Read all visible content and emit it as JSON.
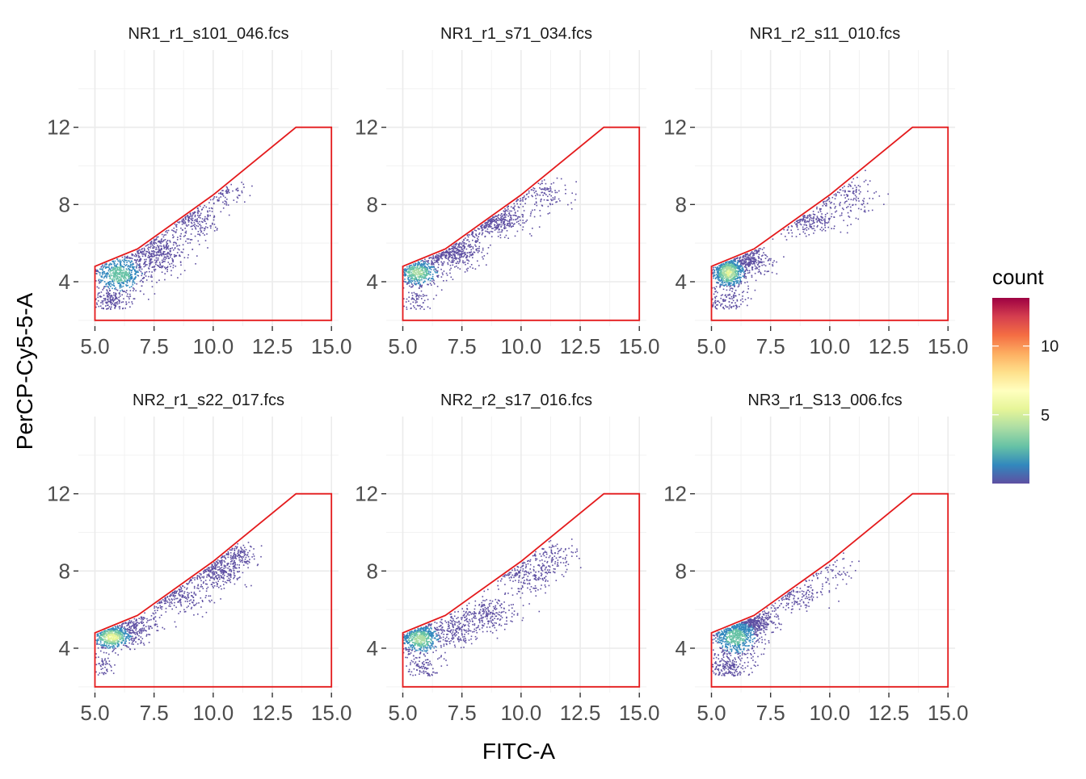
{
  "chart_data": {
    "type": "scatter",
    "subtype": "2d-density (hex/bin count) with polygon gate, faceted 2x3",
    "xlabel": "FITC-A",
    "ylabel": "PerCP-Cy5-5-A",
    "xlim": [
      4.3,
      15.3
    ],
    "ylim": [
      1.7,
      16.0
    ],
    "xticks": [
      5.0,
      7.5,
      10.0,
      12.5,
      15.0
    ],
    "xtick_labels": [
      "5.0",
      "7.5",
      "10.0",
      "12.5",
      "15.0"
    ],
    "yticks": [
      4,
      8,
      12
    ],
    "ytick_labels": [
      "4",
      "8",
      "12"
    ],
    "grid": true,
    "gate": {
      "color": "#e41a1c",
      "polygon": [
        [
          5.0,
          4.8
        ],
        [
          6.8,
          5.7
        ],
        [
          10.0,
          8.5
        ],
        [
          13.5,
          12.0
        ],
        [
          15.0,
          12.0
        ],
        [
          15.0,
          2.0
        ],
        [
          5.0,
          2.0
        ]
      ]
    },
    "legend": {
      "title": "count",
      "placement": "right",
      "ticks": [
        5,
        10
      ],
      "tick_labels": [
        "5",
        "10"
      ],
      "range": [
        0,
        13.5
      ],
      "colors": [
        "#5e4fa2",
        "#3288bd",
        "#66c2a5",
        "#abdda4",
        "#e6f598",
        "#ffffbf",
        "#fee08b",
        "#fdae61",
        "#f46d43",
        "#d53e4f",
        "#9e0142"
      ]
    },
    "facets": [
      {
        "title": "NR1_r1_s101_046.fcs",
        "density": [
          {
            "x": 6.0,
            "y": 4.4,
            "sx": 0.55,
            "sy": 0.5,
            "w": 0.4
          },
          {
            "x": 7.6,
            "y": 5.6,
            "sx": 0.6,
            "sy": 0.55,
            "w": 0.3
          },
          {
            "x": 9.2,
            "y": 7.2,
            "sx": 0.5,
            "sy": 0.5,
            "w": 0.15
          },
          {
            "x": 10.6,
            "y": 8.6,
            "sx": 0.45,
            "sy": 0.4,
            "w": 0.05
          },
          {
            "x": 5.6,
            "y": 3.0,
            "sx": 0.4,
            "sy": 0.3,
            "w": 0.1
          }
        ],
        "max_count": 3
      },
      {
        "title": "NR1_r1_s71_034.fcs",
        "density": [
          {
            "x": 5.6,
            "y": 4.5,
            "sx": 0.45,
            "sy": 0.35,
            "w": 0.35
          },
          {
            "x": 7.2,
            "y": 5.6,
            "sx": 0.55,
            "sy": 0.4,
            "w": 0.25
          },
          {
            "x": 9.0,
            "y": 7.2,
            "sx": 0.6,
            "sy": 0.4,
            "w": 0.25
          },
          {
            "x": 10.8,
            "y": 8.6,
            "sx": 0.6,
            "sy": 0.45,
            "w": 0.1
          },
          {
            "x": 5.6,
            "y": 3.0,
            "sx": 0.4,
            "sy": 0.3,
            "w": 0.05
          }
        ],
        "max_count": 4
      },
      {
        "title": "NR1_r2_s11_010.fcs",
        "density": [
          {
            "x": 5.7,
            "y": 4.5,
            "sx": 0.35,
            "sy": 0.4,
            "w": 0.5
          },
          {
            "x": 6.6,
            "y": 5.2,
            "sx": 0.4,
            "sy": 0.35,
            "w": 0.2
          },
          {
            "x": 9.2,
            "y": 7.2,
            "sx": 0.55,
            "sy": 0.35,
            "w": 0.12
          },
          {
            "x": 10.8,
            "y": 8.4,
            "sx": 0.6,
            "sy": 0.5,
            "w": 0.1
          },
          {
            "x": 5.6,
            "y": 3.0,
            "sx": 0.4,
            "sy": 0.3,
            "w": 0.08
          }
        ],
        "max_count": 5
      },
      {
        "title": "NR2_r1_s22_017.fcs",
        "density": [
          {
            "x": 5.7,
            "y": 4.6,
            "sx": 0.4,
            "sy": 0.3,
            "w": 0.35
          },
          {
            "x": 6.6,
            "y": 5.2,
            "sx": 0.5,
            "sy": 0.4,
            "w": 0.15
          },
          {
            "x": 8.6,
            "y": 6.8,
            "sx": 0.6,
            "sy": 0.5,
            "w": 0.15
          },
          {
            "x": 10.2,
            "y": 8.0,
            "sx": 0.5,
            "sy": 0.4,
            "w": 0.2
          },
          {
            "x": 11.0,
            "y": 8.8,
            "sx": 0.4,
            "sy": 0.4,
            "w": 0.1
          },
          {
            "x": 5.3,
            "y": 3.0,
            "sx": 0.3,
            "sy": 0.35,
            "w": 0.05
          }
        ],
        "max_count": 6
      },
      {
        "title": "NR2_r2_s17_016.fcs",
        "density": [
          {
            "x": 5.7,
            "y": 4.5,
            "sx": 0.45,
            "sy": 0.4,
            "w": 0.4
          },
          {
            "x": 7.2,
            "y": 5.0,
            "sx": 0.6,
            "sy": 0.4,
            "w": 0.15
          },
          {
            "x": 8.6,
            "y": 5.8,
            "sx": 0.6,
            "sy": 0.4,
            "w": 0.15
          },
          {
            "x": 10.2,
            "y": 7.8,
            "sx": 0.6,
            "sy": 0.5,
            "w": 0.15
          },
          {
            "x": 11.4,
            "y": 8.8,
            "sx": 0.5,
            "sy": 0.45,
            "w": 0.08
          },
          {
            "x": 5.8,
            "y": 3.0,
            "sx": 0.4,
            "sy": 0.3,
            "w": 0.07
          }
        ],
        "max_count": 4
      },
      {
        "title": "NR3_r1_S13_006.fcs",
        "density": [
          {
            "x": 6.0,
            "y": 4.6,
            "sx": 0.5,
            "sy": 0.5,
            "w": 0.45
          },
          {
            "x": 6.8,
            "y": 5.4,
            "sx": 0.4,
            "sy": 0.3,
            "w": 0.25
          },
          {
            "x": 8.6,
            "y": 6.8,
            "sx": 0.6,
            "sy": 0.4,
            "w": 0.1
          },
          {
            "x": 10.0,
            "y": 8.0,
            "sx": 0.5,
            "sy": 0.4,
            "w": 0.05
          },
          {
            "x": 5.6,
            "y": 3.0,
            "sx": 0.45,
            "sy": 0.3,
            "w": 0.15
          }
        ],
        "max_count": 3
      }
    ]
  }
}
